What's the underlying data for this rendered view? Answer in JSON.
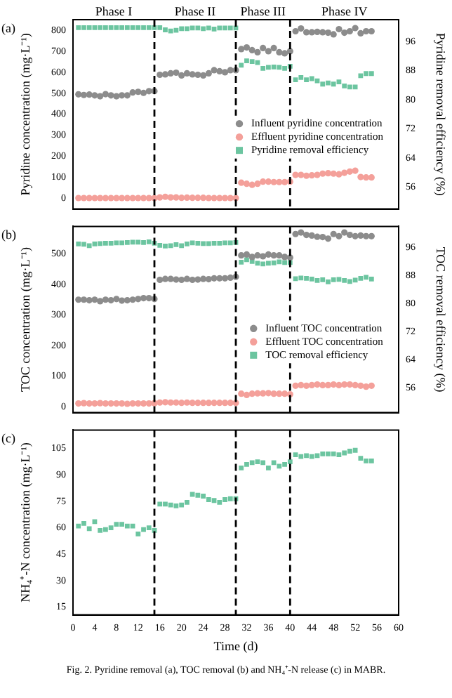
{
  "chart_data": [
    {
      "type": "scatter",
      "title": "(a)",
      "ylabel": "Pyridine concentration (mg·L⁻¹)",
      "y2label": "Pyridine removal efficiency (%)",
      "x": [
        1,
        2,
        3,
        4,
        5,
        6,
        7,
        8,
        9,
        10,
        11,
        12,
        13,
        14,
        15,
        16,
        17,
        18,
        19,
        20,
        21,
        22,
        23,
        24,
        25,
        26,
        27,
        28,
        29,
        30,
        31,
        32,
        33,
        34,
        35,
        36,
        37,
        38,
        39,
        40,
        41,
        42,
        43,
        44,
        45,
        46,
        47,
        48,
        49,
        50,
        51,
        52,
        53,
        54,
        55
      ],
      "xlim": [
        0,
        60
      ],
      "xticks": [
        0,
        4,
        8,
        12,
        16,
        20,
        24,
        28,
        32,
        36,
        40,
        44,
        48,
        52,
        56,
        60
      ],
      "ylim": [
        -50,
        850
      ],
      "yticks": [
        0,
        100,
        200,
        300,
        400,
        500,
        600,
        700,
        800
      ],
      "y2lim": [
        50,
        102
      ],
      "y2ticks": [
        56,
        64,
        72,
        80,
        88,
        96
      ],
      "tick_labels": "y",
      "legend": "right",
      "series": [
        {
          "name": "Influent pyridine concentration",
          "color": "#8c8c8c",
          "marker": "circle",
          "values": [
            495,
            492,
            494,
            490,
            486,
            496,
            490,
            486,
            490,
            490,
            504,
            507,
            502,
            510,
            510,
            588,
            590,
            595,
            598,
            585,
            595,
            590,
            588,
            585,
            595,
            610,
            605,
            600,
            610,
            610,
            710,
            718,
            705,
            695,
            715,
            700,
            715,
            695,
            690,
            700,
            795,
            808,
            790,
            790,
            792,
            790,
            788,
            780,
            805,
            788,
            795,
            810,
            785,
            795,
            795
          ]
        },
        {
          "name": "Effluent pyridine concentration",
          "color": "#f4a09a",
          "marker": "circle",
          "values": [
            2,
            2,
            2,
            2,
            2,
            2,
            2,
            2,
            2,
            2,
            2,
            2,
            2,
            2,
            2,
            5,
            8,
            5,
            5,
            3,
            4,
            3,
            3,
            3,
            2,
            2,
            2,
            2,
            2,
            2,
            75,
            70,
            65,
            70,
            80,
            80,
            78,
            78,
            78,
            80,
            112,
            112,
            108,
            110,
            112,
            118,
            120,
            118,
            115,
            122,
            128,
            132,
            102,
            100,
            100
          ]
        },
        {
          "name": "Pyridine removal efficiency",
          "color": "#6cc5a0",
          "marker": "square",
          "axis": "y2",
          "values": [
            99.8,
            99.8,
            99.8,
            99.8,
            99.8,
            99.8,
            99.8,
            99.8,
            99.8,
            99.8,
            99.8,
            99.8,
            99.8,
            99.8,
            99.8,
            99.8,
            99.2,
            98.9,
            99.1,
            99.5,
            99.5,
            99.7,
            99.7,
            99.5,
            99.7,
            99.4,
            99.7,
            99.7,
            99.7,
            99.7,
            89.5,
            90.7,
            90.5,
            90.2,
            88.6,
            88.9,
            89,
            88.9,
            88.6,
            89.2,
            85.5,
            86.1,
            85.5,
            85.8,
            85.2,
            84.3,
            84.6,
            84.3,
            84.9,
            83.8,
            83.5,
            83.5,
            86.6,
            87.2,
            87.2
          ]
        }
      ],
      "ref_lines": [
        {
          "axis": "x",
          "value": 15
        },
        {
          "axis": "x",
          "value": 30
        },
        {
          "axis": "x",
          "value": 40
        }
      ],
      "annotations": [
        "Phase I",
        "Phase II",
        "Phase III",
        "Phase IV"
      ]
    },
    {
      "type": "scatter",
      "title": "(b)",
      "ylabel": "TOC concentration (mg·L⁻¹)",
      "y2label": "TOC removal efficiency (%)",
      "x": [
        1,
        2,
        3,
        4,
        5,
        6,
        7,
        8,
        9,
        10,
        11,
        12,
        13,
        14,
        15,
        16,
        17,
        18,
        19,
        20,
        21,
        22,
        23,
        24,
        25,
        26,
        27,
        28,
        29,
        30,
        31,
        32,
        33,
        34,
        35,
        36,
        37,
        38,
        39,
        40,
        41,
        42,
        43,
        44,
        45,
        46,
        47,
        48,
        49,
        50,
        51,
        52,
        53,
        54,
        55
      ],
      "xlim": [
        0,
        60
      ],
      "xticks": [
        0,
        4,
        8,
        12,
        16,
        20,
        24,
        28,
        32,
        36,
        40,
        44,
        48,
        52,
        56,
        60
      ],
      "ylim": [
        -20,
        590
      ],
      "yticks": [
        0,
        100,
        200,
        300,
        400,
        500
      ],
      "y2lim": [
        49,
        102
      ],
      "y2ticks": [
        56,
        64,
        72,
        80,
        88,
        96
      ],
      "tick_labels": "y",
      "legend": "right",
      "series": [
        {
          "name": "Influent TOC concentration",
          "color": "#8c8c8c",
          "marker": "circle",
          "values": [
            350,
            350,
            348,
            350,
            345,
            350,
            348,
            352,
            347,
            348,
            350,
            352,
            355,
            355,
            352,
            415,
            418,
            418,
            416,
            415,
            418,
            415,
            416,
            418,
            417,
            420,
            420,
            420,
            422,
            425,
            495,
            498,
            490,
            495,
            492,
            498,
            495,
            495,
            490,
            488,
            565,
            570,
            562,
            560,
            556,
            555,
            550,
            565,
            558,
            570,
            562,
            558,
            560,
            558,
            558
          ]
        },
        {
          "name": "Effluent TOC concentration",
          "color": "#f4a09a",
          "marker": "circle",
          "values": [
            10,
            11,
            10,
            10,
            11,
            10,
            10,
            10,
            10,
            9,
            10,
            10,
            10,
            10,
            11,
            13,
            14,
            13,
            13,
            12,
            13,
            12,
            12,
            12,
            12,
            12,
            12,
            12,
            12,
            12,
            42,
            38,
            42,
            43,
            43,
            44,
            42,
            42,
            42,
            40,
            68,
            70,
            68,
            70,
            72,
            70,
            70,
            72,
            70,
            72,
            72,
            70,
            68,
            65,
            68
          ]
        },
        {
          "name": "TOC removal efficiency",
          "color": "#6cc5a0",
          "marker": "square",
          "axis": "y2",
          "values": [
            97,
            96.9,
            96.5,
            97,
            97.1,
            97.2,
            97.2,
            97.3,
            97.3,
            97.4,
            97.5,
            97.5,
            97.4,
            97.6,
            97.2,
            96.6,
            96.4,
            96.5,
            96.8,
            96.5,
            97,
            97.3,
            97.2,
            97.1,
            97.1,
            97.2,
            97.2,
            97.3,
            97.3,
            97.4,
            91.8,
            92.5,
            92,
            91.5,
            91.3,
            91.5,
            91.6,
            91.9,
            91.7,
            91.7,
            87.1,
            87.3,
            87.2,
            87,
            86.6,
            86.8,
            86.2,
            86.8,
            86.9,
            86.6,
            86.3,
            86.7,
            87.2,
            87.5,
            87
          ]
        }
      ],
      "ref_lines": [
        {
          "axis": "x",
          "value": 15
        },
        {
          "axis": "x",
          "value": 30
        },
        {
          "axis": "x",
          "value": 40
        }
      ]
    },
    {
      "type": "scatter",
      "title": "(c)",
      "ylabel": "NH₄⁺-N concentration (mg·L⁻¹)",
      "xlabel": "Time (d)",
      "x": [
        1,
        2,
        3,
        4,
        5,
        6,
        7,
        8,
        9,
        10,
        11,
        12,
        13,
        14,
        15,
        16,
        17,
        18,
        19,
        20,
        21,
        22,
        23,
        24,
        25,
        26,
        27,
        28,
        29,
        30,
        31,
        32,
        33,
        34,
        35,
        36,
        37,
        38,
        39,
        40,
        41,
        42,
        43,
        44,
        45,
        46,
        47,
        48,
        49,
        50,
        51,
        52,
        53,
        54,
        55
      ],
      "xlim": [
        0,
        60
      ],
      "xticks": [
        0,
        4,
        8,
        12,
        16,
        20,
        24,
        28,
        32,
        36,
        40,
        44,
        48,
        52,
        56,
        60
      ],
      "ylim": [
        10.6,
        115.5
      ],
      "yticks": [
        15,
        30,
        45,
        60,
        75,
        90,
        105
      ],
      "series": [
        {
          "color": "#6cc5a0",
          "marker": "square",
          "values": [
            61,
            62.5,
            59.5,
            63.5,
            58.5,
            59,
            60,
            62,
            62,
            61,
            61,
            56.5,
            59,
            60,
            58.5,
            73.5,
            73.5,
            73,
            72.5,
            73,
            74.5,
            79,
            78.5,
            78,
            76,
            75.5,
            74.5,
            76,
            76.5,
            76.5,
            94,
            96,
            97,
            97.5,
            97,
            94,
            97,
            95,
            96,
            97.5,
            101.5,
            100.5,
            101,
            100.5,
            101,
            102,
            102,
            102,
            101.5,
            102.5,
            103.5,
            104,
            99.5,
            98,
            98
          ]
        }
      ],
      "ref_lines": [
        {
          "axis": "x",
          "value": 15
        },
        {
          "axis": "x",
          "value": 30
        },
        {
          "axis": "x",
          "value": 40
        }
      ],
      "annotations": [
        "Fig. 2. Pyridine removal (a), TOC removal (b) and NH₄⁺-N release (c) in MABR."
      ]
    }
  ]
}
